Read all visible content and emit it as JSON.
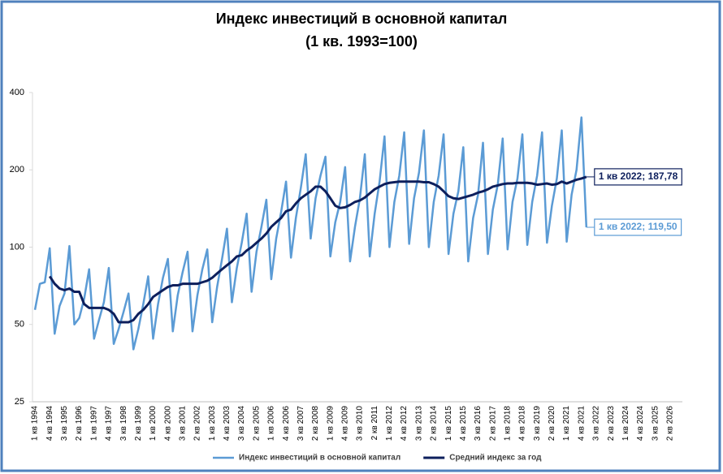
{
  "chart_data": {
    "type": "line",
    "title": "Индекс инвестиций в основной капитал",
    "subtitle": "(1 кв. 1993=100)",
    "log_scale": true,
    "grid": false,
    "legend": "bottom",
    "ylim": [
      25,
      400
    ],
    "yticks": [
      25,
      50,
      100,
      200,
      400
    ],
    "categories": [
      "1 кв 1994",
      null,
      null,
      "4 кв 1994",
      null,
      null,
      "3 кв 1995",
      null,
      null,
      "2 кв 1996",
      null,
      null,
      "1 кв 1997",
      null,
      null,
      "4 кв 1997",
      null,
      null,
      "3 кв 1998",
      null,
      null,
      "2 кв 1999",
      null,
      null,
      "1 кв 2000",
      null,
      null,
      "4 кв 2000",
      null,
      null,
      "3 кв 2001",
      null,
      null,
      "2 кв 2002",
      null,
      null,
      "1 кв 2003",
      null,
      null,
      "4 кв 2003",
      null,
      null,
      "3 кв 2004",
      null,
      null,
      "2 кв 2005",
      null,
      null,
      "1 кв 2006",
      null,
      null,
      "4 кв 2006",
      null,
      null,
      "3 кв 2007",
      null,
      null,
      "2 кв 2008",
      null,
      null,
      "1 кв 2009",
      null,
      null,
      "4 кв 2009",
      null,
      null,
      "3 кв 2010",
      null,
      null,
      "2 кв 2011",
      null,
      null,
      "1 кв 2012",
      null,
      null,
      "4 кв 2012",
      null,
      null,
      "3 кв 2013",
      null,
      null,
      "2 кв 2014",
      null,
      null,
      "1 кв 2015",
      null,
      null,
      "4 кв 2015",
      null,
      null,
      "3 кв 2016",
      null,
      null,
      "2 кв 2017",
      null,
      null,
      "1 кв 2018",
      null,
      null,
      "4 кв 2018",
      null,
      null,
      "3 кв 2019",
      null,
      null,
      "2 кв 2020",
      null,
      null,
      "1 кв 2021",
      null,
      null,
      "4 кв 2021",
      null,
      null,
      "3 кв 2022",
      null,
      null,
      "2 кв 2023",
      null,
      null,
      "1 кв 2024",
      null,
      null,
      "4 кв 2024",
      null,
      null,
      "3 кв 2025",
      null,
      null,
      "2 кв 2026",
      null,
      null
    ],
    "series": [
      {
        "name": "Индекс инвестиций в основной капитал",
        "color": "#5b9bd5",
        "width": 2.5,
        "values": [
          57,
          72,
          73,
          99,
          46,
          59,
          66,
          101,
          50,
          53,
          63,
          82,
          44,
          52,
          61,
          83,
          42,
          48,
          56,
          66,
          40,
          48,
          60,
          77,
          44,
          60,
          76,
          90,
          47,
          65,
          80,
          96,
          47,
          65,
          82,
          98,
          51,
          70,
          90,
          118,
          61,
          83,
          104,
          135,
          67,
          96,
          120,
          153,
          75,
          108,
          137,
          180,
          91,
          130,
          170,
          230,
          108,
          155,
          190,
          225,
          92,
          125,
          150,
          205,
          88,
          120,
          155,
          230,
          92,
          135,
          180,
          270,
          100,
          150,
          190,
          280,
          103,
          155,
          195,
          285,
          100,
          150,
          190,
          275,
          94,
          135,
          165,
          245,
          88,
          130,
          160,
          255,
          94,
          140,
          175,
          265,
          98,
          150,
          185,
          275,
          102,
          150,
          190,
          280,
          104,
          145,
          185,
          285,
          105,
          160,
          200,
          320,
          119.5,
          null,
          null,
          null,
          null,
          null,
          null,
          null,
          null,
          null,
          null,
          null,
          null,
          null,
          null,
          null,
          null,
          null,
          null,
          null
        ],
        "value_labels": [
          null,
          null,
          null,
          null,
          null,
          null,
          null,
          null,
          null,
          null,
          null,
          null,
          null,
          null,
          null,
          null,
          null,
          null,
          null,
          null,
          null,
          null,
          null,
          null,
          null,
          null,
          null,
          null,
          null,
          null,
          null,
          null,
          null,
          null,
          null,
          null,
          null,
          null,
          null,
          null,
          null,
          null,
          null,
          null,
          null,
          null,
          null,
          null,
          null,
          null,
          null,
          null,
          null,
          null,
          null,
          null,
          null,
          null,
          null,
          null,
          null,
          null,
          null,
          null,
          null,
          null,
          null,
          null,
          null,
          null,
          null,
          null,
          null,
          null,
          null,
          null,
          null,
          null,
          null,
          null,
          null,
          null,
          null,
          null,
          null,
          null,
          null,
          null,
          null,
          null,
          null,
          null,
          null,
          null,
          null,
          null,
          null,
          null,
          null,
          null,
          null,
          null,
          null,
          null,
          null,
          null,
          null,
          null,
          null,
          null,
          null,
          null,
          "1 кв 2022; 119,50",
          null,
          null,
          null,
          null,
          null,
          null,
          null,
          null,
          null,
          null,
          null,
          null,
          null,
          null,
          null,
          null,
          null,
          null,
          null
        ]
      },
      {
        "name": "Средний индекс за год",
        "color": "#0d1f5c",
        "width": 3,
        "values": [
          null,
          null,
          null,
          77,
          72,
          69,
          68,
          69,
          67,
          67,
          60,
          58,
          58,
          58,
          58,
          57,
          55,
          51,
          51,
          51,
          52,
          55,
          57,
          60,
          64,
          66,
          68,
          70,
          71,
          71,
          72,
          72,
          72,
          72,
          73,
          74,
          76,
          79,
          82,
          85,
          88,
          92,
          93,
          97,
          100,
          104,
          108,
          113,
          120,
          125,
          130,
          138,
          140,
          148,
          155,
          160,
          165,
          172,
          172,
          165,
          155,
          145,
          142,
          143,
          146,
          150,
          152,
          156,
          162,
          168,
          172,
          176,
          178,
          179,
          180,
          180,
          180,
          180,
          180,
          179,
          179,
          176,
          172,
          165,
          158,
          155,
          154,
          156,
          158,
          160,
          163,
          165,
          168,
          172,
          174,
          176,
          177,
          177,
          178,
          178,
          178,
          177,
          175,
          176,
          177,
          175,
          176,
          180,
          177,
          180,
          183,
          185,
          187.78,
          null,
          null,
          null,
          null,
          null,
          null,
          null,
          null,
          null,
          null,
          null,
          null,
          null,
          null,
          null,
          null,
          null,
          null,
          null
        ],
        "value_labels": [
          null,
          null,
          null,
          null,
          null,
          null,
          null,
          null,
          null,
          null,
          null,
          null,
          null,
          null,
          null,
          null,
          null,
          null,
          null,
          null,
          null,
          null,
          null,
          null,
          null,
          null,
          null,
          null,
          null,
          null,
          null,
          null,
          null,
          null,
          null,
          null,
          null,
          null,
          null,
          null,
          null,
          null,
          null,
          null,
          null,
          null,
          null,
          null,
          null,
          null,
          null,
          null,
          null,
          null,
          null,
          null,
          null,
          null,
          null,
          null,
          null,
          null,
          null,
          null,
          null,
          null,
          null,
          null,
          null,
          null,
          null,
          null,
          null,
          null,
          null,
          null,
          null,
          null,
          null,
          null,
          null,
          null,
          null,
          null,
          null,
          null,
          null,
          null,
          null,
          null,
          null,
          null,
          null,
          null,
          null,
          null,
          null,
          null,
          null,
          null,
          null,
          null,
          null,
          null,
          null,
          null,
          null,
          null,
          null,
          null,
          null,
          null,
          "1 кв 2022;  187,78",
          null,
          null,
          null,
          null,
          null,
          null,
          null,
          null,
          null,
          null,
          null,
          null,
          null,
          null,
          null,
          null,
          null,
          null,
          null
        ]
      }
    ]
  }
}
